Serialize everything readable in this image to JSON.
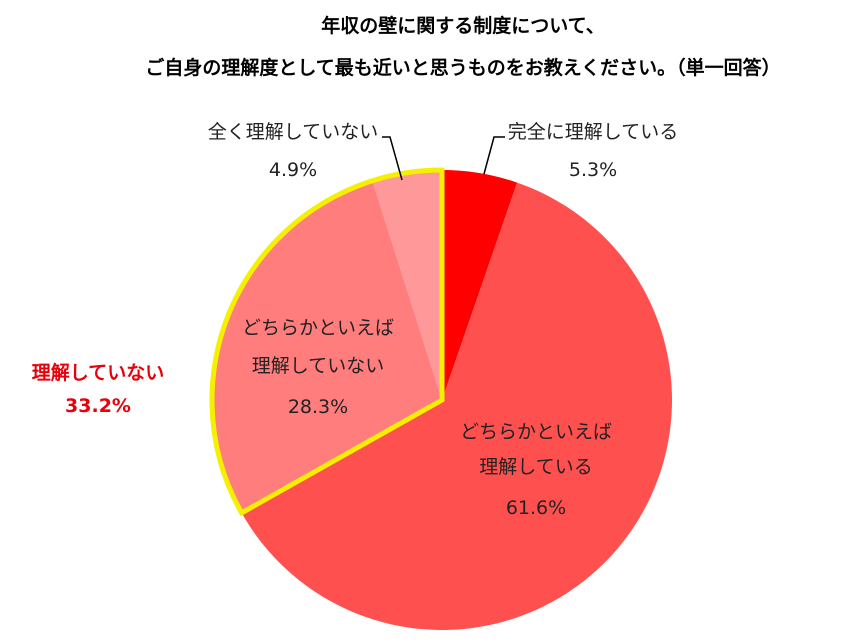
{
  "title_line1": "年収の壁に関する制度について、",
  "title_line2": "ご自身の理解度として最も近いと思うものをお教えください。（単一回答）",
  "highlight": {
    "label": "理解していない",
    "value": "33.2%",
    "color": "#e8000b",
    "outline_color": "#f5f000"
  },
  "chart_data": {
    "type": "pie",
    "title": "年収の壁に関する制度について、ご自身の理解度として最も近いと思うものをお教えください。（単一回答）",
    "start": "12 o'clock, clockwise",
    "slices": [
      {
        "label": "完全に理解している",
        "label_lines": [
          "完全に理解している"
        ],
        "value": 5.3,
        "value_text": "5.3%",
        "color": "#ff0000"
      },
      {
        "label": "どちらかといえば理解している",
        "label_lines": [
          "どちらかといえば",
          "理解している"
        ],
        "value": 61.6,
        "value_text": "61.6%",
        "color": "#ff5050"
      },
      {
        "label": "どちらかといえば理解していない",
        "label_lines": [
          "どちらかといえば",
          "理解していない"
        ],
        "value": 28.3,
        "value_text": "28.3%",
        "color": "#ff7d7d"
      },
      {
        "label": "全く理解していない",
        "label_lines": [
          "全く理解していない"
        ],
        "value": 4.9,
        "value_text": "4.9%",
        "color": "#ff9999"
      }
    ]
  }
}
